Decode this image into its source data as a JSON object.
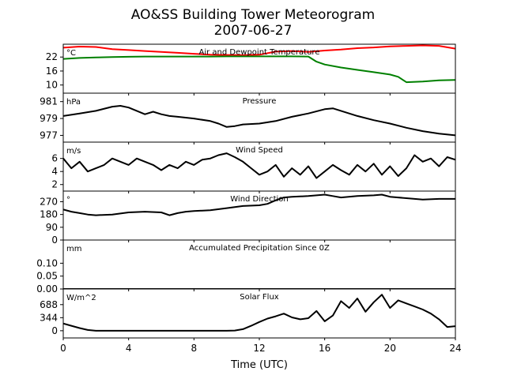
{
  "figure": {
    "title_line1": "AO&SS Building Tower Meteorogram",
    "title_line2": "2007-06-27",
    "xlabel": "Time (UTC)"
  },
  "colors": {
    "temperature": "#ff0000",
    "dewpoint": "#008000",
    "default": "#000000"
  },
  "chart_data": [
    {
      "type": "line",
      "title": "Air and Dewpoint Temperature",
      "ylabel": "°C",
      "xlim": [
        0,
        24
      ],
      "ylim": [
        6.5,
        27.5
      ],
      "yticks": [
        10,
        16,
        22
      ],
      "xticks": [
        0,
        4,
        8,
        12,
        16,
        20,
        24
      ],
      "series": [
        {
          "color": "#ff0000",
          "x": [
            0,
            1,
            2,
            3,
            4,
            5,
            6,
            7,
            8,
            9,
            10,
            11,
            12,
            13,
            14,
            15,
            16,
            17,
            18,
            19,
            20,
            21,
            22,
            23,
            24
          ],
          "values": [
            26.0,
            26.5,
            26.3,
            25.4,
            25.0,
            24.6,
            24.2,
            23.8,
            23.4,
            23.0,
            22.9,
            22.8,
            23.0,
            24.3,
            24.6,
            24.2,
            24.8,
            25.2,
            25.8,
            26.1,
            26.6,
            26.8,
            27.0,
            26.8,
            25.6
          ]
        },
        {
          "color": "#008000",
          "x": [
            0,
            1,
            2,
            3,
            4,
            5,
            6,
            7,
            8,
            9,
            10,
            11,
            12,
            13,
            14,
            15,
            15.5,
            16,
            17,
            18,
            19,
            20,
            20.5,
            21,
            22,
            23,
            24
          ],
          "values": [
            21.2,
            21.6,
            21.8,
            22.0,
            22.1,
            22.2,
            22.2,
            22.2,
            22.2,
            22.2,
            22.3,
            22.3,
            22.3,
            22.3,
            22.3,
            22.2,
            20.0,
            18.8,
            17.5,
            16.5,
            15.5,
            14.5,
            13.5,
            11.2,
            11.5,
            12.0,
            12.2
          ]
        }
      ]
    },
    {
      "type": "line",
      "title": "Pressure",
      "ylabel": "hPa",
      "xlim": [
        0,
        24
      ],
      "ylim": [
        976.2,
        982.0
      ],
      "yticks": [
        977,
        979,
        981
      ],
      "series": [
        {
          "color": "#000000",
          "x": [
            0,
            1,
            2,
            3,
            3.5,
            4,
            5,
            5.5,
            6,
            6.5,
            7,
            8,
            9,
            9.5,
            10,
            10.5,
            11,
            12,
            13,
            14,
            15,
            16,
            16.5,
            17,
            18,
            19,
            20,
            21,
            22,
            23,
            24
          ],
          "values": [
            979.3,
            979.6,
            979.9,
            980.4,
            980.5,
            980.3,
            979.5,
            979.8,
            979.5,
            979.3,
            979.2,
            979.0,
            978.7,
            978.4,
            978.0,
            978.1,
            978.3,
            978.4,
            978.7,
            979.2,
            979.6,
            980.1,
            980.2,
            979.9,
            979.3,
            978.8,
            978.4,
            977.9,
            977.5,
            977.2,
            977.0
          ]
        }
      ]
    },
    {
      "type": "line",
      "title": "Wind Speed",
      "ylabel": "m/s",
      "xlim": [
        0,
        24
      ],
      "ylim": [
        1.0,
        8.5
      ],
      "yticks": [
        2,
        4,
        6
      ],
      "series": [
        {
          "color": "#000000",
          "x": [
            0,
            0.5,
            1,
            1.5,
            2,
            2.5,
            3,
            3.5,
            4,
            4.5,
            5,
            5.5,
            6,
            6.5,
            7,
            7.5,
            8,
            8.5,
            9,
            9.5,
            10,
            10.5,
            11,
            11.5,
            12,
            12.5,
            13,
            13.5,
            14,
            14.5,
            15,
            15.5,
            16,
            16.5,
            17,
            17.5,
            18,
            18.5,
            19,
            19.5,
            20,
            20.5,
            21,
            21.5,
            22,
            22.5,
            23,
            23.5,
            24
          ],
          "values": [
            6.0,
            4.5,
            5.5,
            4.0,
            4.5,
            5.0,
            6.0,
            5.5,
            5.0,
            6.0,
            5.5,
            5.0,
            4.2,
            5.0,
            4.5,
            5.5,
            5.0,
            5.8,
            6.0,
            6.5,
            6.8,
            6.2,
            5.5,
            4.5,
            3.5,
            4.0,
            5.0,
            3.2,
            4.5,
            3.5,
            4.8,
            3.0,
            4.0,
            5.0,
            4.2,
            3.5,
            5.0,
            4.0,
            5.2,
            3.5,
            4.8,
            3.3,
            4.5,
            6.5,
            5.5,
            6.0,
            4.8,
            6.2,
            5.8
          ]
        }
      ]
    },
    {
      "type": "line",
      "title": "Wind Direction",
      "ylabel": "°",
      "xlim": [
        0,
        24
      ],
      "ylim": [
        0,
        345
      ],
      "yticks": [
        0,
        90,
        180,
        270
      ],
      "series": [
        {
          "color": "#000000",
          "x": [
            0,
            0.5,
            1,
            1.5,
            2,
            3,
            4,
            5,
            6,
            6.5,
            7,
            7.5,
            8,
            9,
            10,
            11,
            12,
            12.5,
            13,
            13.5,
            14,
            15,
            16,
            16.5,
            17,
            18,
            19,
            19.5,
            20,
            21,
            22,
            23,
            24
          ],
          "values": [
            215,
            200,
            190,
            180,
            175,
            180,
            195,
            200,
            195,
            175,
            190,
            200,
            205,
            210,
            225,
            240,
            245,
            255,
            280,
            300,
            305,
            310,
            320,
            310,
            300,
            310,
            315,
            320,
            305,
            295,
            285,
            290,
            290
          ]
        }
      ]
    },
    {
      "type": "line",
      "title": "Accumulated Precipitation Since 0Z",
      "ylabel": "mm",
      "xlim": [
        0,
        24
      ],
      "ylim": [
        0,
        0.19
      ],
      "yticks": [
        0.0,
        0.05,
        0.1
      ],
      "series": [
        {
          "color": "#000000",
          "x": [
            0,
            24
          ],
          "values": [
            0,
            0
          ]
        }
      ]
    },
    {
      "type": "line",
      "title": "Solar Flux",
      "ylabel": "W/m^2",
      "xlim": [
        0,
        24
      ],
      "ylim": [
        -190,
        1100
      ],
      "yticks": [
        0,
        344,
        688
      ],
      "series": [
        {
          "color": "#000000",
          "x": [
            0,
            0.5,
            1,
            1.5,
            2,
            3,
            4,
            5,
            6,
            7,
            8,
            9,
            10,
            10.5,
            11,
            11.5,
            12,
            12.5,
            13,
            13.5,
            14,
            14.5,
            15,
            15.5,
            16,
            16.5,
            17,
            17.5,
            18,
            18.5,
            19,
            19.5,
            20,
            20.5,
            21,
            21.5,
            22,
            22.5,
            23,
            23.5,
            24
          ],
          "values": [
            190,
            130,
            70,
            20,
            0,
            0,
            0,
            0,
            0,
            0,
            0,
            0,
            0,
            5,
            40,
            130,
            230,
            320,
            380,
            450,
            350,
            300,
            330,
            520,
            250,
            400,
            780,
            600,
            850,
            500,
            750,
            950,
            600,
            800,
            720,
            640,
            560,
            450,
            300,
            100,
            120
          ]
        }
      ]
    }
  ]
}
